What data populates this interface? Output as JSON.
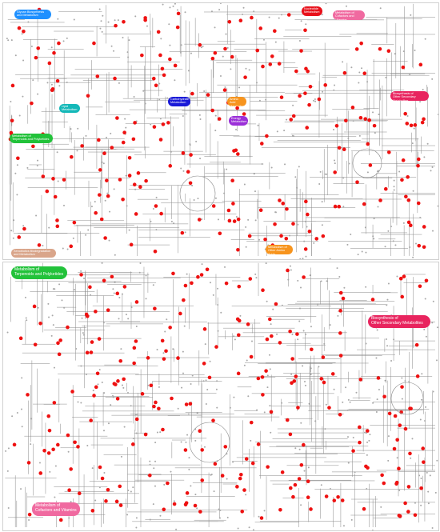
{
  "maps": [
    {
      "id": "top",
      "categories": [
        {
          "label": "Glycan Biosynthesis\nand Metabolism",
          "color": "#1e90ff"
        },
        {
          "label": "Nucleotide\nMetabolism",
          "color": "#e8101a"
        },
        {
          "label": "Metabolism of\nCofactors and Vitamins",
          "color": "#f06aa0"
        },
        {
          "label": "Biosynthesis of\nOther Secondary Metabolites",
          "color": "#e8245e"
        },
        {
          "label": "Carbohydrate\nMetabolism",
          "color": "#1a1ad8"
        },
        {
          "label": "Lipid\nMetabolism",
          "color": "#14b8b8"
        },
        {
          "label": "Amino Acid\nMetabolism",
          "color": "#f7941d"
        },
        {
          "label": "Energy\nMetabolism",
          "color": "#9b30d8"
        },
        {
          "label": "Metabolism of\nTerpenoids and Polyketides",
          "color": "#22c23a"
        },
        {
          "label": "Xenobiotics Biodegradation\nand Metabolism",
          "color": "#d9a58a"
        },
        {
          "label": "Metabolism of\nOther Amino Acids",
          "color": "#f7941d"
        }
      ]
    },
    {
      "id": "bottom",
      "categories": [
        {
          "label": "Metabolism of\nTerpenoids and Polyketides",
          "color": "#22c23a"
        },
        {
          "label": "Biosynthesis of\nOther Secondary Metabolites",
          "color": "#e8245e"
        },
        {
          "label": "Metabolism of\nCofactors and Vitamins",
          "color": "#f06aa0"
        }
      ]
    }
  ],
  "style": {
    "line_color": "#8a8a8a",
    "node_color": "#a8a8a8",
    "highlight_color": "#ee1111"
  }
}
